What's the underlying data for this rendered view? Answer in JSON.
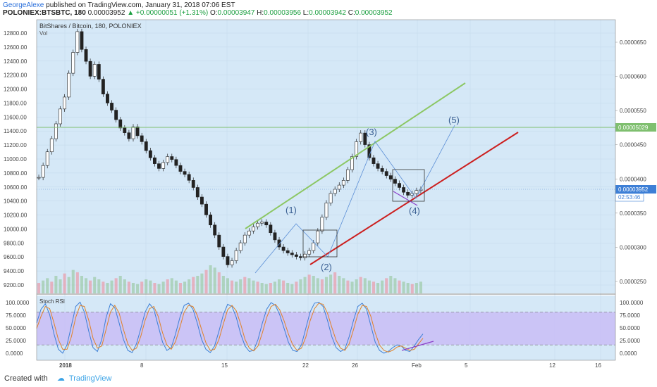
{
  "header": {
    "author": "GeorgeAlexe",
    "published": "published on TradingView.com, January 31, 2018 07:06 EST",
    "symbol": "POLONIEX:BTSBTC, 180",
    "last": "0.00003952",
    "change": "▲ +0.00000051 (+1.31%)",
    "o_label": "O:",
    "o_value": "0.00003947",
    "h_label": "H:",
    "h_value": "0.00003956",
    "l_label": "L:",
    "l_value": "0.00003942",
    "c_label": "C:",
    "c_value": "0.00003952"
  },
  "footer": {
    "created_with": "Created with",
    "brand": "TradingView"
  },
  "chart_data": [
    {
      "type": "candlestick",
      "title": "BitShares / Bitcoin, 180, POLONIEX",
      "subtitle": "Vol",
      "left_axis_labels": [
        "12800.00",
        "12600.00",
        "12400.00",
        "12200.00",
        "12000.00",
        "11800.00",
        "11600.00",
        "11400.00",
        "11200.00",
        "11000.00",
        "10800.00",
        "10600.00",
        "10400.00",
        "10200.00",
        "10000.00",
        "9800.00",
        "9600.00",
        "9400.00",
        "9200.00"
      ],
      "right_axis_labels": [
        "0.0000650",
        "0.0000600",
        "0.0000550",
        "0.0000450",
        "0.0000400",
        "0.0000350",
        "0.0000300",
        "0.0000250"
      ],
      "x_tick_labels": [
        "2018",
        "8",
        "15",
        "22",
        "26",
        "Feb",
        "5",
        "12",
        "16"
      ],
      "horizontal_level": "0.00005029",
      "price_tag": "0.00003952",
      "time_tag": "02:53:46",
      "ylim": [
        2.2e-05,
        6.8e-05
      ],
      "series": [
        {
          "name": "",
          "values": [
            4.15e-05,
            4.35e-05,
            4.58e-05,
            4.8e-05,
            5.05e-05,
            5.3e-05,
            5.5e-05,
            5.9e-05,
            6.25e-05,
            6.6e-05,
            6.3e-05,
            6.1e-05,
            5.85e-05,
            6.05e-05,
            5.8e-05,
            5.55e-05,
            5.4e-05,
            5.28e-05,
            5.12e-05,
            4.98e-05,
            4.9e-05,
            4.8e-05,
            5e-05,
            4.85e-05,
            4.75e-05,
            4.6e-05,
            4.48e-05,
            4.38e-05,
            4.3e-05,
            4.4e-05,
            4.5e-05,
            4.45e-05,
            4.35e-05,
            4.25e-05,
            4.2e-05,
            4.1e-05,
            3.98e-05,
            3.82e-05,
            3.7e-05,
            3.52e-05,
            3.35e-05,
            3.18e-05,
            2.98e-05,
            2.82e-05,
            2.68e-05,
            2.75e-05,
            2.92e-05,
            3.05e-05,
            3.18e-05,
            3.25e-05,
            3.32e-05,
            3.38e-05,
            3.4e-05,
            3.35e-05,
            3.22e-05,
            3.1e-05,
            2.98e-05,
            2.92e-05,
            2.88e-05,
            2.85e-05,
            2.82e-05,
            2.8e-05,
            2.86e-05,
            2.92e-05,
            3.05e-05,
            3.25e-05,
            3.48e-05,
            3.72e-05,
            3.88e-05,
            3.95e-05,
            4.02e-05,
            4.1e-05,
            4.28e-05,
            4.5e-05,
            4.75e-05,
            4.895e-05,
            4.7e-05,
            4.48e-05,
            4.38e-05,
            4.3e-05,
            4.25e-05,
            4.18e-05,
            4.12e-05,
            4.05e-05,
            3.98e-05,
            3.9e-05,
            3.85e-05,
            3.88e-05,
            3.93e-05,
            3.95e-05
          ]
        }
      ],
      "volume": [
        18,
        22,
        26,
        20,
        30,
        24,
        34,
        28,
        40,
        36,
        30,
        26,
        22,
        28,
        24,
        20,
        18,
        22,
        26,
        30,
        24,
        20,
        18,
        16,
        20,
        24,
        22,
        18,
        16,
        20,
        24,
        26,
        22,
        18,
        20,
        24,
        28,
        30,
        34,
        40,
        48,
        44,
        36,
        30,
        26,
        22,
        20,
        24,
        28,
        26,
        22,
        20,
        18,
        16,
        18,
        20,
        24,
        22,
        18,
        16,
        20,
        24,
        28,
        32,
        30,
        26,
        24,
        28,
        32,
        36,
        30,
        26,
        22,
        20,
        24,
        28,
        26,
        22,
        20,
        18,
        22,
        26,
        30,
        26,
        22,
        20,
        18,
        16,
        18,
        20
      ],
      "annotations": [
        "(1)",
        "(2)",
        "(3)",
        "(4)",
        "(5)"
      ]
    },
    {
      "type": "line",
      "title": "Stoch RSI",
      "left_axis_labels": [
        "100.0000",
        "75.0000",
        "50.0000",
        "25.0000",
        "0.0000"
      ],
      "right_axis_labels": [
        "100.0000",
        "75.0000",
        "50.0000",
        "25.0000",
        "0.0000"
      ],
      "ylim": [
        -8,
        110
      ],
      "band": [
        20,
        80
      ],
      "series": [
        {
          "name": "",
          "values": [
            60,
            85,
            95,
            75,
            40,
            12,
            5,
            20,
            55,
            90,
            98,
            80,
            45,
            15,
            8,
            30,
            70,
            95,
            88,
            60,
            30,
            10,
            6,
            22,
            50,
            80,
            95,
            85,
            55,
            25,
            10,
            15,
            40,
            70,
            92,
            96,
            85,
            60,
            30,
            12,
            6,
            18,
            45,
            75,
            94,
            90,
            70,
            40,
            18,
            8,
            10,
            30,
            60,
            85,
            97,
            92,
            75,
            50,
            25,
            10,
            8,
            20,
            50,
            80,
            96,
            98,
            90,
            65,
            35,
            15,
            8,
            12,
            35,
            65,
            90,
            96,
            85,
            55,
            25,
            10,
            5,
            8,
            15,
            20,
            18,
            10,
            8,
            18,
            30,
            40
          ]
        },
        {
          "name": "",
          "values": [
            50,
            72,
            90,
            86,
            60,
            30,
            12,
            12,
            35,
            70,
            92,
            90,
            65,
            32,
            14,
            18,
            48,
            80,
            92,
            78,
            48,
            22,
            10,
            14,
            36,
            65,
            86,
            90,
            72,
            42,
            20,
            12,
            26,
            52,
            80,
            92,
            90,
            74,
            48,
            24,
            10,
            12,
            30,
            58,
            84,
            92,
            82,
            58,
            30,
            14,
            9,
            18,
            42,
            70,
            90,
            94,
            84,
            64,
            40,
            20,
            10,
            14,
            34,
            64,
            86,
            96,
            94,
            78,
            52,
            28,
            14,
            10,
            22,
            48,
            76,
            92,
            90,
            72,
            42,
            20,
            10,
            7,
            10,
            16,
            18,
            14,
            10,
            12,
            22,
            32
          ]
        }
      ],
      "annotations": []
    }
  ]
}
